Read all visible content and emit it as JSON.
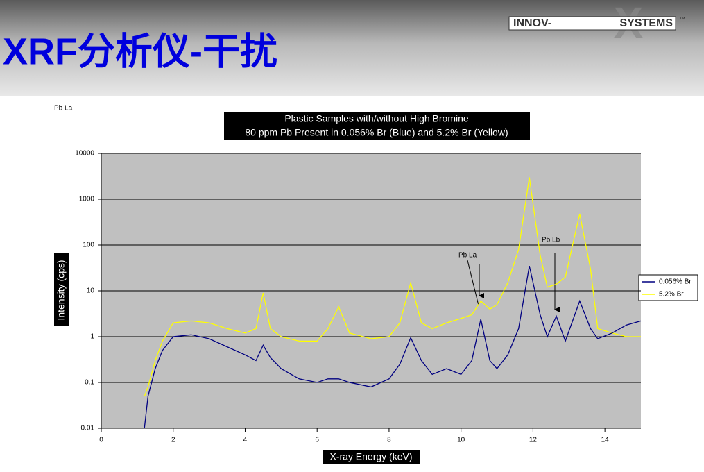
{
  "slide": {
    "title": "XRF分析仪-干扰",
    "logo_left": "INNOV-",
    "logo_mark": "X",
    "logo_right": "SYSTEMS",
    "logo_tm": "™",
    "corner_note": "Pb La"
  },
  "chart_data": {
    "type": "line",
    "title": "Plastic Samples with/without High Bromine",
    "subtitle": "80 ppm Pb Present in 0.056% Br (Blue) and 5.2% Br (Yellow)",
    "x_label": "X-ray Energy (keV)",
    "y_label": "Intensity (cps)",
    "x": [
      1.2,
      1.3,
      1.5,
      1.7,
      2.0,
      2.5,
      3.0,
      3.5,
      4.0,
      4.3,
      4.5,
      4.7,
      5.0,
      5.5,
      6.0,
      6.3,
      6.6,
      6.9,
      7.5,
      8.0,
      8.3,
      8.6,
      8.9,
      9.2,
      9.6,
      10.0,
      10.3,
      10.55,
      10.8,
      11.0,
      11.3,
      11.6,
      11.9,
      12.2,
      12.4,
      12.65,
      12.9,
      13.3,
      13.6,
      13.8,
      14.2,
      14.6,
      15.0
    ],
    "series": [
      {
        "name": "0.056% Br",
        "color": "#000080",
        "values": [
          0.01,
          0.05,
          0.2,
          0.5,
          1.0,
          1.1,
          0.9,
          0.6,
          0.4,
          0.3,
          0.65,
          0.35,
          0.2,
          0.12,
          0.1,
          0.12,
          0.12,
          0.1,
          0.08,
          0.12,
          0.25,
          0.95,
          0.3,
          0.15,
          0.2,
          0.15,
          0.3,
          2.4,
          0.3,
          0.2,
          0.4,
          1.5,
          35,
          3,
          1.0,
          2.8,
          0.8,
          6,
          1.5,
          0.9,
          1.2,
          1.8,
          2.2
        ]
      },
      {
        "name": "5.2% Br",
        "color": "#ffff00",
        "values": [
          0.05,
          0.08,
          0.3,
          0.8,
          2.0,
          2.2,
          2.0,
          1.5,
          1.2,
          1.5,
          9,
          1.5,
          1.0,
          0.8,
          0.8,
          1.5,
          4.5,
          1.2,
          0.9,
          1.0,
          2,
          15,
          2,
          1.5,
          2,
          2.5,
          3,
          6,
          4,
          5,
          15,
          80,
          3000,
          60,
          12,
          14,
          20,
          480,
          30,
          1.5,
          1.2,
          1.0,
          1.0
        ]
      }
    ],
    "xlim": [
      0,
      15
    ],
    "xticks": [
      0,
      2,
      4,
      6,
      8,
      10,
      12,
      14
    ],
    "ylim": [
      0.01,
      10000
    ],
    "yticks": [
      0.01,
      0.1,
      1,
      10,
      100,
      1000,
      10000
    ],
    "y_scale": "log",
    "grid": true,
    "legend": "right",
    "annotations": [
      "Pb La",
      "Pb Lb"
    ]
  }
}
